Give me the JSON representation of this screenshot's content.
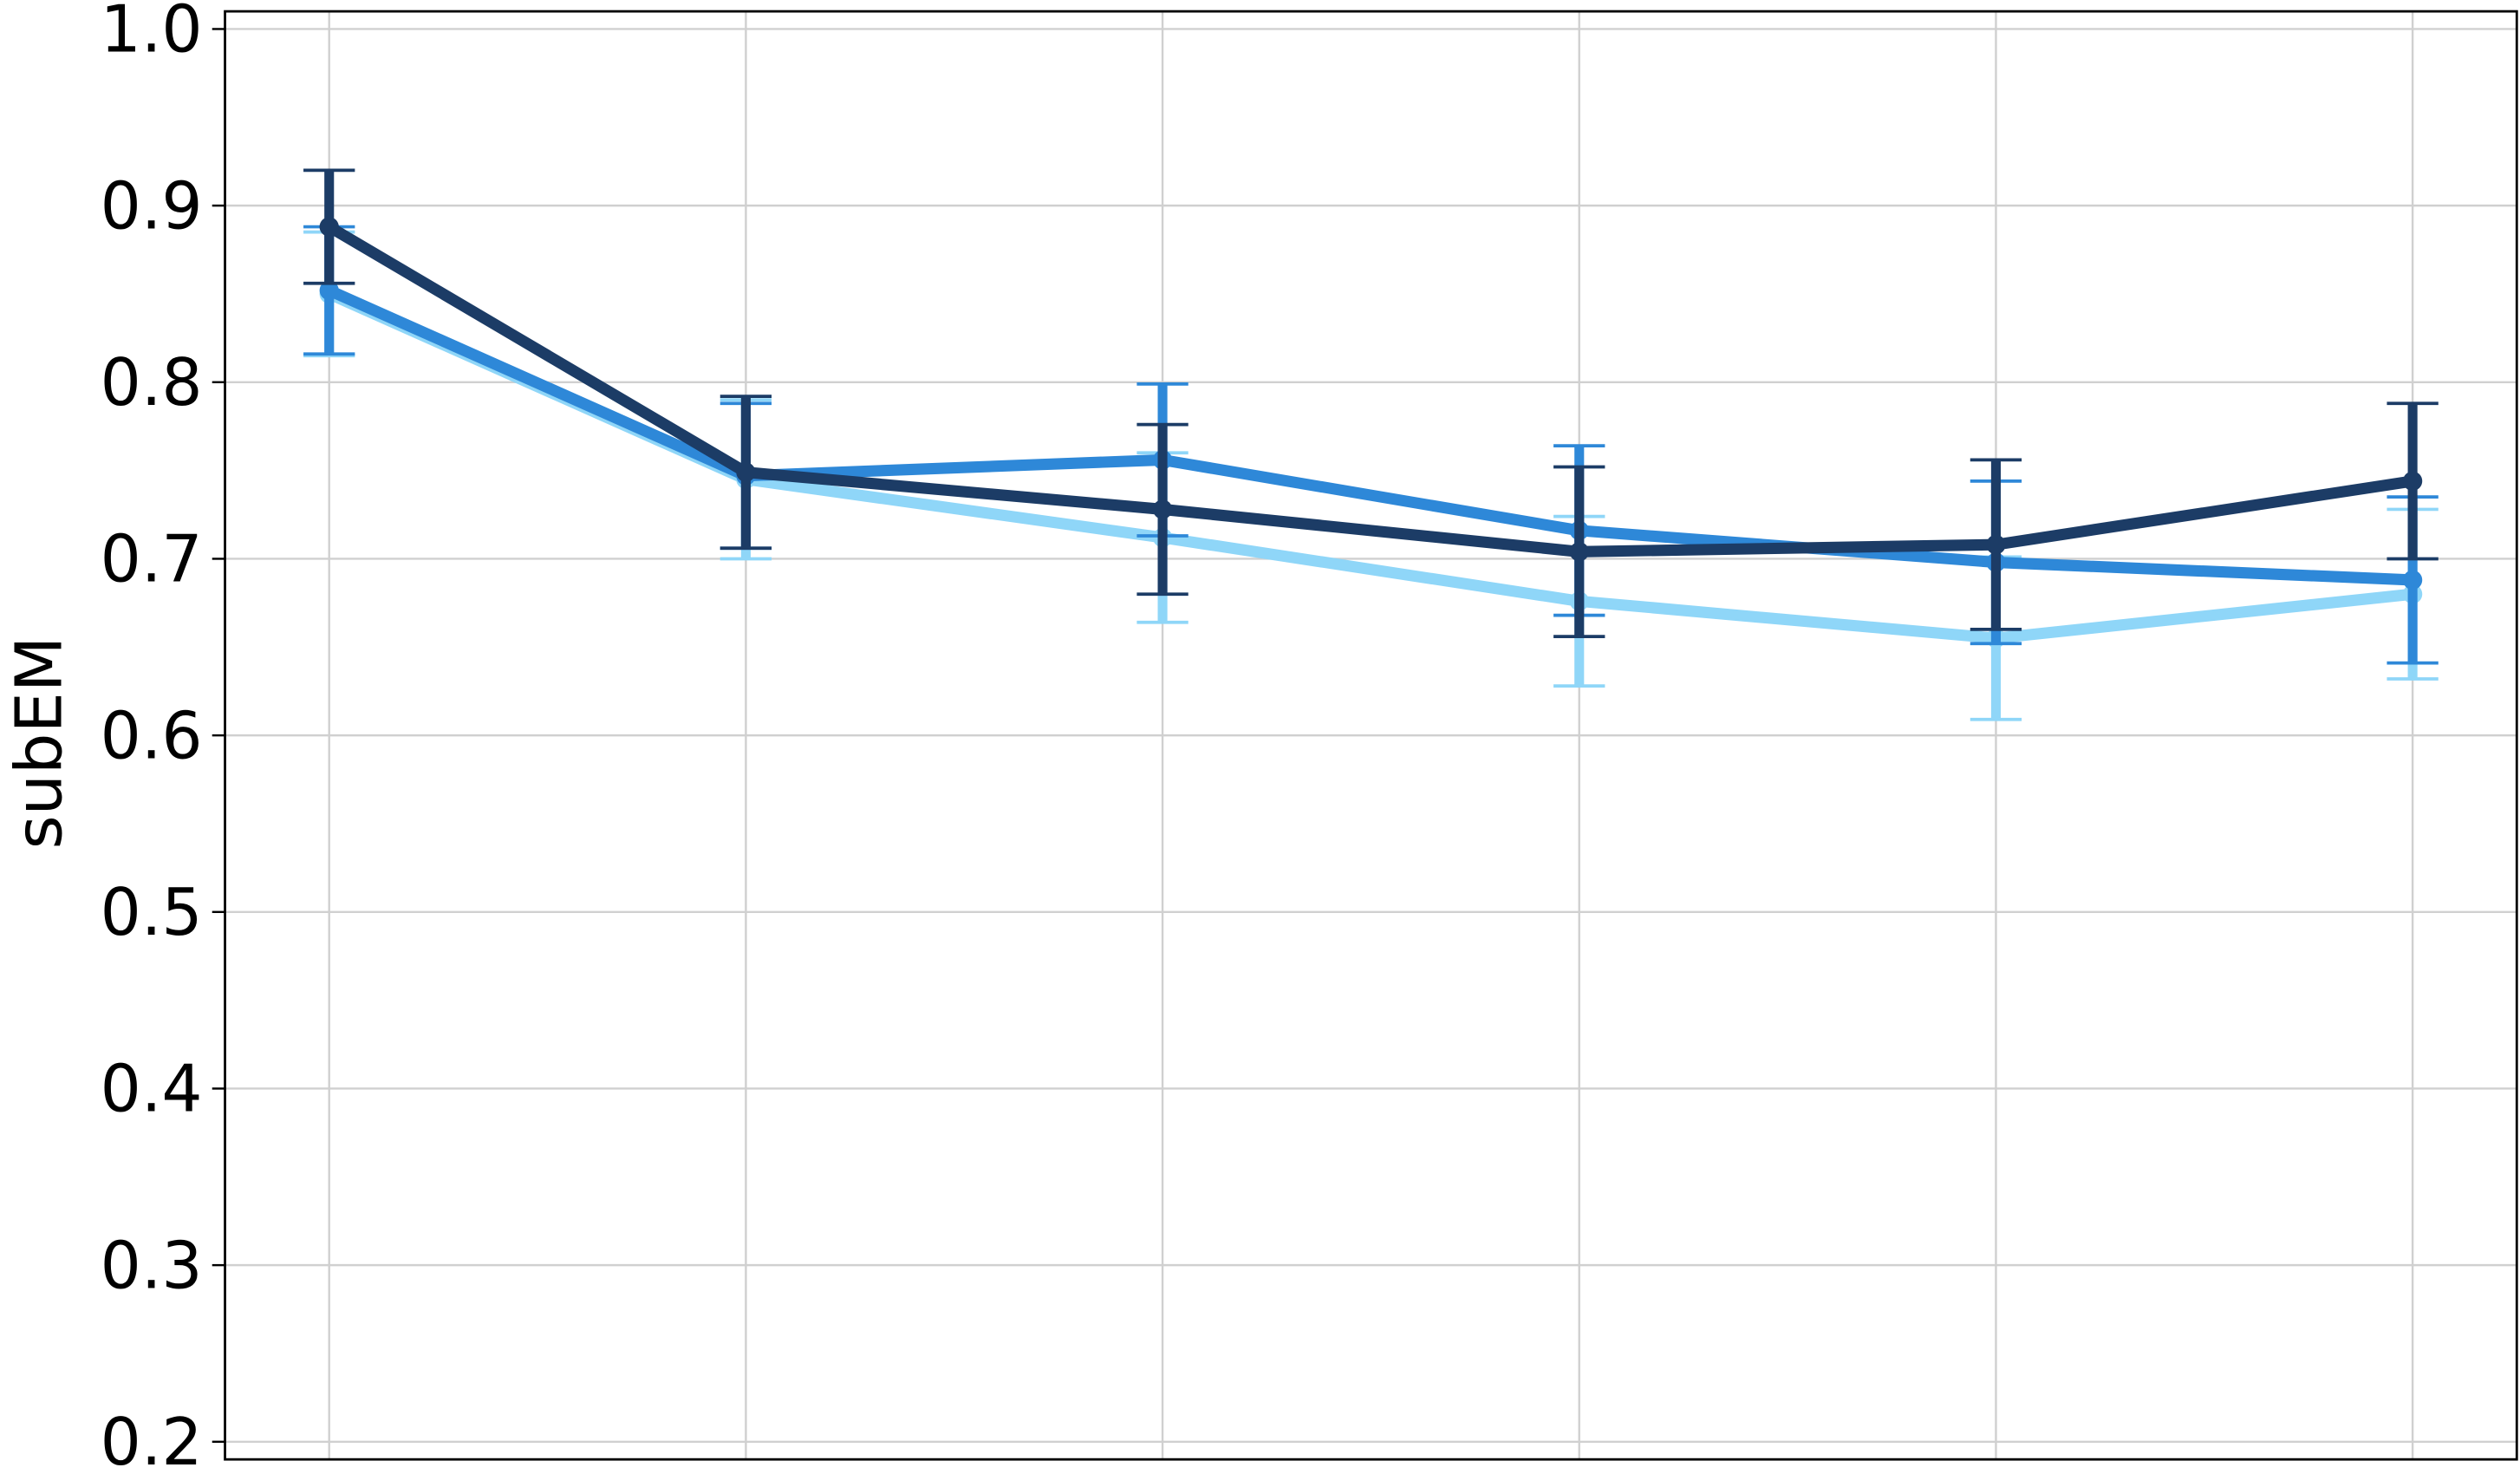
{
  "chart_data": {
    "type": "line",
    "y_label": "subEM",
    "categories": [
      null,
      null,
      null,
      null,
      null,
      null
    ],
    "ylim": [
      0.19,
      1.01
    ],
    "yticks": [
      0.2,
      0.3,
      0.4,
      0.5,
      0.6,
      0.7,
      0.8,
      0.9,
      {
        "value": 1,
        "label": "1.0"
      }
    ],
    "grid": true,
    "series": [
      {
        "color": "#8fd6f8",
        "values": [
          0.85,
          0.745,
          0.712,
          0.676,
          0.655,
          0.68
        ],
        "error": [
          0.035,
          0.045,
          0.048,
          0.048,
          0.046,
          0.048
        ]
      },
      {
        "color": "#2e88d8",
        "values": [
          0.852,
          0.747,
          0.756,
          0.716,
          0.698,
          0.688
        ],
        "error": [
          0.036,
          0.041,
          0.043,
          0.048,
          0.046,
          0.047
        ]
      },
      {
        "color": "#1c3c66",
        "values": [
          0.888,
          0.749,
          0.728,
          0.704,
          0.708,
          0.744
        ],
        "error": [
          0.032,
          0.043,
          0.048,
          0.048,
          0.048,
          0.044
        ]
      }
    ]
  }
}
